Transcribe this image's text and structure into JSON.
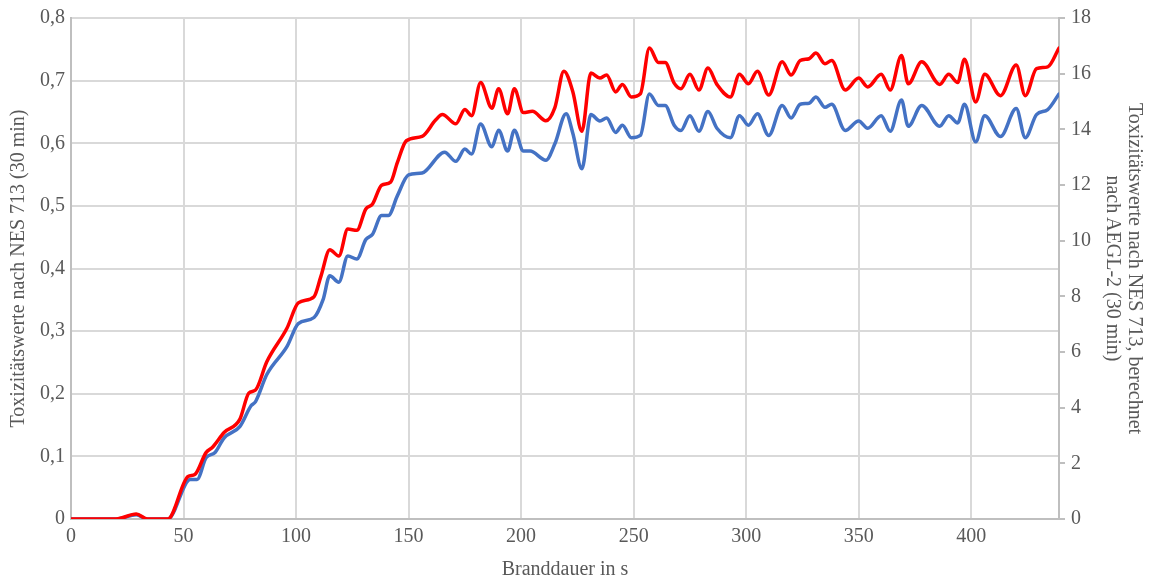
{
  "chart_data": {
    "type": "line",
    "xlabel": "Branddauer in s",
    "ylabel": "Toxizitätswerte nach NES 713 (30 min)",
    "y2label": "Toxizitätswerte nach NES 713, berechnet\nnach AEGL-2 (30 min)",
    "xlim": [
      0,
      439
    ],
    "xticks": [
      0,
      50,
      100,
      150,
      200,
      250,
      300,
      350,
      400
    ],
    "ylim": [
      0,
      0.8
    ],
    "yticks": [
      0,
      {
        "value": 0.1,
        "label": "0,1"
      },
      {
        "value": 0.2,
        "label": "0,2"
      },
      {
        "value": 0.3,
        "label": "0,3"
      },
      {
        "value": 0.4,
        "label": "0,4"
      },
      {
        "value": 0.5,
        "label": "0,5"
      },
      {
        "value": 0.6,
        "label": "0,6"
      },
      {
        "value": 0.7,
        "label": "0,7"
      },
      {
        "value": 0.8,
        "label": "0,8"
      }
    ],
    "y2lim": [
      0,
      18
    ],
    "y2ticks": [
      0,
      2,
      4,
      6,
      8,
      10,
      12,
      14,
      16,
      18
    ],
    "grid": true,
    "legend": false,
    "marker": "none",
    "line_style": "solid",
    "series": [
      {
        "color": "#ff0000",
        "x": [
          0,
          20,
          29,
          34,
          43,
          52,
          55,
          60,
          63,
          68,
          75,
          79,
          82,
          87,
          96,
          101,
          108,
          111,
          115,
          119,
          123,
          127,
          131,
          134,
          138,
          142,
          145,
          149,
          156,
          162,
          165,
          171,
          175,
          178,
          182,
          187,
          190,
          194,
          197,
          201,
          205,
          211,
          215,
          219,
          223,
          227,
          231,
          235,
          238,
          242,
          245,
          249,
          253,
          257,
          261,
          264,
          268,
          271,
          275,
          279,
          283,
          287,
          293,
          297,
          301,
          305,
          310,
          316,
          320,
          324,
          328,
          331,
          335,
          338,
          344,
          350,
          354,
          360,
          364,
          369,
          372,
          378,
          386,
          390,
          394,
          397,
          402,
          406,
          413,
          420,
          424,
          429,
          434,
          439
        ],
        "values": [
          0,
          0,
          0.008,
          0,
          0,
          0.068,
          0.071,
          0.106,
          0.115,
          0.138,
          0.159,
          0.201,
          0.206,
          0.251,
          0.305,
          0.345,
          0.355,
          0.387,
          0.43,
          0.42,
          0.463,
          0.461,
          0.495,
          0.503,
          0.533,
          0.538,
          0.569,
          0.604,
          0.611,
          0.637,
          0.646,
          0.631,
          0.654,
          0.644,
          0.697,
          0.656,
          0.687,
          0.647,
          0.687,
          0.649,
          0.651,
          0.636,
          0.657,
          0.715,
          0.682,
          0.619,
          0.712,
          0.704,
          0.709,
          0.682,
          0.694,
          0.674,
          0.679,
          0.752,
          0.729,
          0.729,
          0.696,
          0.687,
          0.71,
          0.685,
          0.72,
          0.694,
          0.674,
          0.71,
          0.695,
          0.715,
          0.677,
          0.73,
          0.709,
          0.732,
          0.735,
          0.744,
          0.727,
          0.732,
          0.685,
          0.704,
          0.69,
          0.71,
          0.685,
          0.74,
          0.695,
          0.73,
          0.694,
          0.71,
          0.697,
          0.734,
          0.666,
          0.71,
          0.676,
          0.725,
          0.676,
          0.719,
          0.722,
          0.752
        ]
      },
      {
        "color": "#4472c4",
        "axis": "y2",
        "x": [
          0,
          20,
          29,
          34,
          43,
          53,
          56,
          60,
          64,
          68,
          75,
          80,
          82,
          87,
          96,
          101,
          108,
          112,
          115,
          119,
          123,
          127,
          131,
          134,
          138,
          141,
          145,
          150,
          156,
          166,
          171,
          175,
          178,
          182,
          187,
          190,
          194,
          197,
          201,
          204,
          211,
          215,
          220,
          223,
          227,
          231,
          235,
          238,
          242,
          245,
          249,
          253,
          257,
          261,
          264,
          268,
          271,
          275,
          279,
          283,
          287,
          293,
          297,
          301,
          305,
          310,
          316,
          320,
          324,
          328,
          331,
          335,
          338,
          344,
          350,
          354,
          360,
          364,
          369,
          372,
          378,
          386,
          390,
          394,
          397,
          402,
          406,
          413,
          420,
          424,
          429,
          434,
          439
        ],
        "values": [
          0,
          0,
          0.15,
          0,
          0,
          1.42,
          1.42,
          2.2,
          2.39,
          2.91,
          3.32,
          4.07,
          4.22,
          5.19,
          6.2,
          7.02,
          7.24,
          7.88,
          8.74,
          8.51,
          9.45,
          9.34,
          10.04,
          10.23,
          10.9,
          10.9,
          11.61,
          12.36,
          12.43,
          13.18,
          12.85,
          13.29,
          13.11,
          14.19,
          13.37,
          13.97,
          13.22,
          13.97,
          13.22,
          13.22,
          12.89,
          13.48,
          14.56,
          13.85,
          12.58,
          14.53,
          14.3,
          14.41,
          13.89,
          14.15,
          13.7,
          13.78,
          15.27,
          14.86,
          14.86,
          14.15,
          13.96,
          14.49,
          13.93,
          14.64,
          14.04,
          13.7,
          14.49,
          14.15,
          14.56,
          13.78,
          14.86,
          14.41,
          14.9,
          14.94,
          15.16,
          14.79,
          14.9,
          13.96,
          14.3,
          14.04,
          14.49,
          13.93,
          15.05,
          14.11,
          14.86,
          14.11,
          14.49,
          14.23,
          14.9,
          13.55,
          14.49,
          13.74,
          14.75,
          13.7,
          14.53,
          14.71,
          15.27
        ]
      }
    ]
  }
}
